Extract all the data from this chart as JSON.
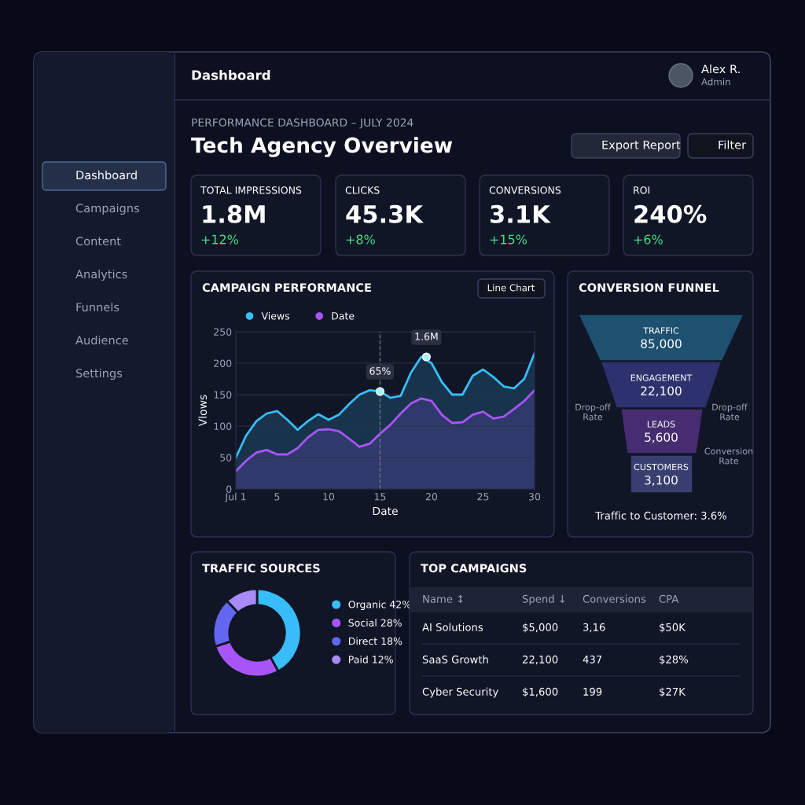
{
  "chart_data": [
    {
      "type": "other",
      "title": "Tech Agency Overview",
      "subtitle": "PERFORMANCE DASHBOARD – JULY 2024",
      "annotations": [
        "Dashboard",
        "Alex R.",
        "Admin",
        "Export Report",
        "Filter",
        "Dashboard",
        "Campaigns",
        "Content",
        "Analytics",
        "Funnels",
        "Audience",
        "Settings"
      ]
    },
    {
      "type": "other",
      "title": "TOTAL IMPRESSIONS",
      "annotations": [
        "1.8M",
        "+12%"
      ]
    },
    {
      "type": "other",
      "title": "CLICKS",
      "annotations": [
        "45.3K",
        "+8%"
      ]
    },
    {
      "type": "other",
      "title": "CONVERSIONS",
      "annotations": [
        "3.1K",
        "+15%"
      ]
    },
    {
      "type": "other",
      "title": "ROI",
      "annotations": [
        "240%",
        "+6%"
      ]
    },
    {
      "type": "area",
      "title": "CAMPAIGN PERFORMANCE",
      "xlabel": "Date",
      "ylabel": "Vlows",
      "x": [
        1,
        2,
        3,
        4,
        5,
        6,
        7,
        8,
        9,
        10,
        11,
        12,
        13,
        14,
        15,
        16,
        17,
        18,
        19,
        20,
        21,
        22,
        23,
        24,
        25,
        26,
        27,
        28,
        29,
        30
      ],
      "xlim": [
        1,
        30
      ],
      "xticks": [
        {
          "value": 1,
          "label": "Jul 1"
        },
        5,
        10,
        15,
        20,
        25,
        30
      ],
      "ylim": [
        0,
        250
      ],
      "yticks": [
        0,
        50,
        100,
        150,
        200,
        250
      ],
      "grid": "y",
      "legend": "top left",
      "series": [
        {
          "name": "Views",
          "color": "#38bdf8",
          "values": [
            50,
            85,
            108,
            120,
            124,
            110,
            94,
            108,
            119,
            110,
            118,
            135,
            150,
            157,
            155,
            145,
            148,
            185,
            210,
            200,
            170,
            150,
            150,
            180,
            190,
            178,
            163,
            160,
            175,
            216
          ]
        },
        {
          "name": "Date",
          "color": "#a855f7",
          "values": [
            28,
            45,
            58,
            62,
            55,
            55,
            65,
            82,
            94,
            95,
            92,
            80,
            67,
            72,
            88,
            102,
            120,
            136,
            144,
            140,
            118,
            105,
            106,
            118,
            123,
            112,
            115,
            127,
            140,
            157
          ]
        }
      ],
      "ref_lines": [
        {
          "axis": "x",
          "value": 15,
          "line_style": "dashed"
        }
      ],
      "annotations": [
        {
          "text": "65%",
          "x": 15,
          "y": 155
        },
        {
          "text": "1.6M",
          "x": 19.5,
          "y": 210
        },
        "Line Chart"
      ]
    },
    {
      "type": "other",
      "title": "CONVERSION FUNNEL",
      "categories": [
        "TRAFFIC",
        "ENGAGEMENT",
        "LEADS",
        "CUSTOMERS"
      ],
      "value_labels": [
        "85,000",
        "22,100",
        "5,600",
        "3,100"
      ],
      "annotations": [
        "Drop-off Rate",
        "Drop-off Rate",
        "Conversion Rate",
        "Traffic to Customer: 3.6%"
      ]
    },
    {
      "type": "donut",
      "title": "TRAFFIC SOURCES",
      "categories": [
        "Organic",
        "Social",
        "Direct",
        "Paid"
      ],
      "values": [
        42,
        28,
        18,
        12
      ],
      "value_labels": [
        "42%",
        "28%",
        "18%",
        "12%"
      ],
      "colors": [
        "#38bdf8",
        "#a855f7",
        "#6366f1",
        "#a78bfa"
      ],
      "legend": "right"
    },
    {
      "type": "other",
      "title": "TOP CAMPAIGNS",
      "categories": [
        "Name ↕",
        "Spend ↓",
        "Conversions",
        "CPA"
      ],
      "annotations": [
        "AI Solutions",
        "$5,000",
        "3,16",
        "$50K",
        "SaaS Growth",
        "22,100",
        "437",
        "$28%",
        "Cyber Security",
        "$1,600",
        "199",
        "$27K"
      ]
    }
  ]
}
